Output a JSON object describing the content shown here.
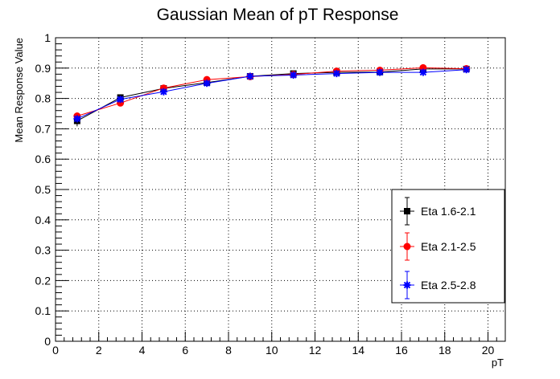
{
  "chart_data": {
    "type": "scatter",
    "title": "Gaussian Mean of pT Response",
    "xlabel": "pT",
    "ylabel": "Mean Response Value",
    "xlim": [
      0,
      20.8
    ],
    "ylim": [
      0,
      1
    ],
    "x_ticks": [
      "0",
      "2",
      "4",
      "6",
      "8",
      "10",
      "12",
      "14",
      "16",
      "18",
      "20"
    ],
    "y_ticks": [
      "0",
      "0.1",
      "0.2",
      "0.3",
      "0.4",
      "0.5",
      "0.6",
      "0.7",
      "0.8",
      "0.9",
      "1"
    ],
    "grid": true,
    "legend_position": "right",
    "series": [
      {
        "name": "Eta 1.6-2.1",
        "color": "#000000",
        "marker": "square",
        "x": [
          1,
          3,
          5,
          7,
          9,
          11,
          13,
          15,
          17,
          19
        ],
        "y": [
          0.726,
          0.803,
          0.833,
          0.852,
          0.873,
          0.882,
          0.886,
          0.887,
          0.897,
          0.897
        ],
        "yerr": [
          0.018,
          0.007,
          0.005,
          0.004,
          0.004,
          0.004,
          0.004,
          0.004,
          0.004,
          0.004
        ]
      },
      {
        "name": "Eta 2.1-2.5",
        "color": "#ff0000",
        "marker": "circle",
        "x": [
          1,
          3,
          5,
          7,
          9,
          11,
          13,
          15,
          17,
          19
        ],
        "y": [
          0.742,
          0.785,
          0.834,
          0.862,
          0.872,
          0.879,
          0.89,
          0.893,
          0.901,
          0.898
        ],
        "yerr": [
          0.012,
          0.007,
          0.005,
          0.004,
          0.004,
          0.004,
          0.004,
          0.004,
          0.004,
          0.004
        ]
      },
      {
        "name": "Eta 2.5-2.8",
        "color": "#0000ff",
        "marker": "star",
        "x": [
          1,
          3,
          5,
          7,
          9,
          11,
          13,
          15,
          17,
          19
        ],
        "y": [
          0.733,
          0.797,
          0.822,
          0.85,
          0.873,
          0.877,
          0.882,
          0.886,
          0.886,
          0.895
        ],
        "yerr": [
          0.01,
          0.007,
          0.005,
          0.004,
          0.004,
          0.004,
          0.004,
          0.004,
          0.004,
          0.004
        ]
      }
    ]
  }
}
